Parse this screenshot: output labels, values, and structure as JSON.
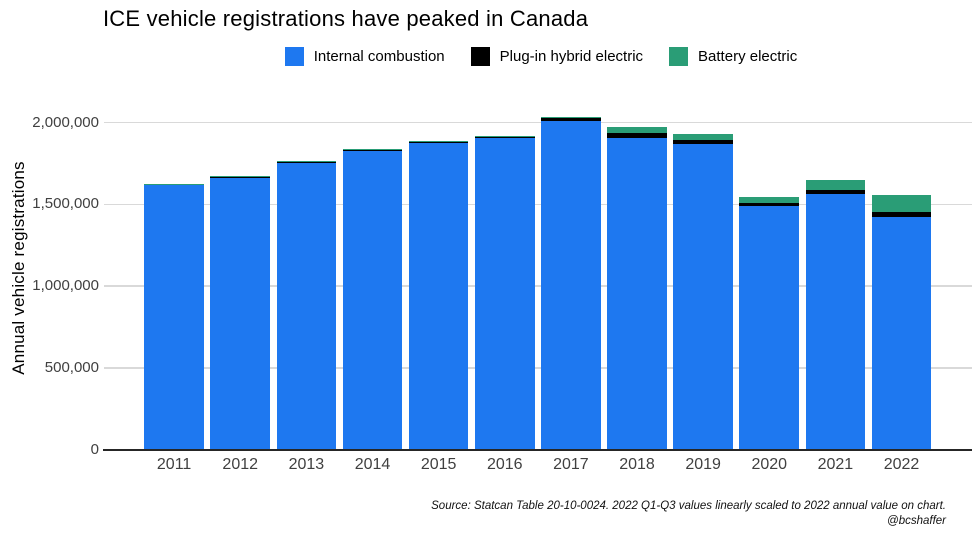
{
  "title": "ICE vehicle registrations have peaked in Canada",
  "legend": {
    "items": [
      {
        "label": "Internal combustion",
        "color": "#1E78F0"
      },
      {
        "label": "Plug-in hybrid electric",
        "color": "#000000"
      },
      {
        "label": "Battery electric",
        "color": "#2A9D76"
      }
    ]
  },
  "y_axis": {
    "title": "Annual vehicle registrations"
  },
  "footer": {
    "source": "Source: Statcan Table 20-10-0024. 2022 Q1-Q3 values linearly scaled to 2022 annual value on chart.",
    "credit": "@bcshaffer"
  },
  "chart_data": {
    "type": "bar",
    "stacked": true,
    "title": "ICE vehicle registrations have peaked in Canada",
    "xlabel": "",
    "ylabel": "Annual vehicle registrations",
    "categories": [
      "2011",
      "2012",
      "2013",
      "2014",
      "2015",
      "2016",
      "2017",
      "2018",
      "2019",
      "2020",
      "2021",
      "2022"
    ],
    "series": [
      {
        "name": "Internal combustion",
        "color": "#1E78F0",
        "values": [
          1620000,
          1662000,
          1752000,
          1824000,
          1876000,
          1905000,
          2012000,
          1907000,
          1869000,
          1489000,
          1562000,
          1423000
        ]
      },
      {
        "name": "Plug-in hybrid electric",
        "color": "#000000",
        "values": [
          2500,
          10000,
          6000,
          9000,
          9000,
          9000,
          16000,
          28000,
          27000,
          20000,
          29000,
          33000
        ]
      },
      {
        "name": "Battery electric",
        "color": "#2A9D76",
        "values": [
          1500,
          3000,
          5000,
          5000,
          6000,
          7000,
          8000,
          41000,
          33000,
          35000,
          58000,
          101000
        ]
      }
    ],
    "totals": [
      1624000,
      1675000,
      1763000,
      1838000,
      1891000,
      1921000,
      2036000,
      1976000,
      1929000,
      1544000,
      1649000,
      1557000
    ],
    "ylim": [
      0,
      2140000
    ],
    "y_ticks": [
      {
        "value": 0,
        "label": "0"
      },
      {
        "value": 500000,
        "label": "500,000"
      },
      {
        "value": 1000000,
        "label": "1,000,000"
      },
      {
        "value": 1500000,
        "label": "1,500,000"
      },
      {
        "value": 2000000,
        "label": "2,000,000"
      }
    ],
    "grid": "horizontal",
    "legend_position": "top-center"
  }
}
